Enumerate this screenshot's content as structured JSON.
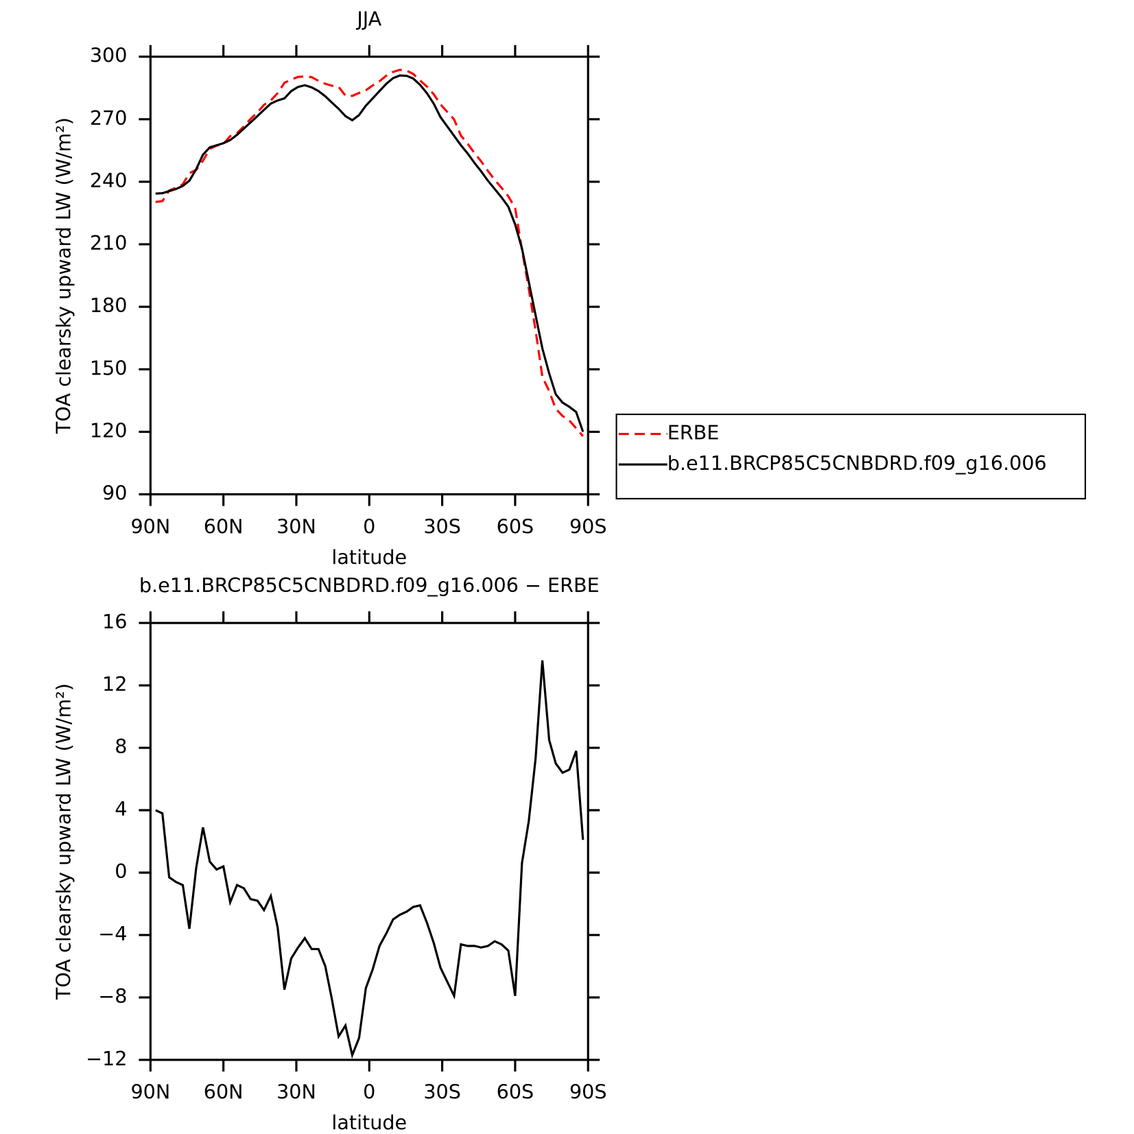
{
  "chart_data": [
    {
      "type": "line",
      "title": "JJA",
      "xlabel": "latitude",
      "ylabel": "TOA clearsky upward LW (W/m²)",
      "xlim": [
        90,
        -90
      ],
      "xticks": [
        {
          "value": 90,
          "label": "90N"
        },
        {
          "value": 60,
          "label": "60N"
        },
        {
          "value": 30,
          "label": "30N"
        },
        0,
        {
          "value": -30,
          "label": "30S"
        },
        {
          "value": -60,
          "label": "60S"
        },
        {
          "value": -90,
          "label": "90S"
        }
      ],
      "ylim": [
        90,
        300
      ],
      "yticks": [
        90,
        120,
        150,
        180,
        210,
        240,
        270,
        300
      ],
      "legend": "right",
      "x": [
        87.9,
        85.1,
        82.3,
        79.5,
        76.7,
        74.0,
        71.2,
        68.4,
        65.6,
        62.8,
        60.0,
        57.2,
        54.4,
        51.6,
        48.8,
        46.0,
        43.3,
        40.5,
        37.7,
        34.9,
        32.1,
        29.3,
        26.5,
        23.7,
        20.9,
        18.1,
        15.4,
        12.6,
        9.8,
        7.0,
        4.2,
        1.4,
        -1.4,
        -4.2,
        -7.0,
        -9.8,
        -12.6,
        -15.4,
        -18.1,
        -20.9,
        -23.7,
        -26.5,
        -29.3,
        -32.1,
        -34.9,
        -37.7,
        -40.5,
        -43.3,
        -46.0,
        -48.8,
        -51.6,
        -54.4,
        -57.2,
        -60.0,
        -62.8,
        -65.6,
        -68.4,
        -71.2,
        -74.0,
        -76.7,
        -79.5,
        -82.3,
        -85.1,
        -87.9
      ],
      "series": [
        {
          "name": "ERBE",
          "color": "#ff0000",
          "style": "dashed",
          "values": [
            230.3,
            230.7,
            235.8,
            237.1,
            238.8,
            244.1,
            245.7,
            250.1,
            255.8,
            257.3,
            258.1,
            261.9,
            263.3,
            266.5,
            270.2,
            273.3,
            276.9,
            279.0,
            282.5,
            287.5,
            289.0,
            290.3,
            290.5,
            290.2,
            288.4,
            287.0,
            286.1,
            285.5,
            281.3,
            281.2,
            282.6,
            283.9,
            286.2,
            288.2,
            290.9,
            292.7,
            293.7,
            293.3,
            291.7,
            288.6,
            285.7,
            282.0,
            277.1,
            273.5,
            269.9,
            262.1,
            258.2,
            253.7,
            249.8,
            245.2,
            240.9,
            237.1,
            233.0,
            227.4,
            207.4,
            188.7,
            168.7,
            146.4,
            139.5,
            131.0,
            127.6,
            125.4,
            121.7,
            117.9
          ]
        },
        {
          "name": "b.e11.BRCP85C5CNBDRD.f09_g16.006",
          "color": "#000000",
          "style": "solid",
          "values": [
            234.3,
            234.5,
            235.5,
            236.5,
            238.0,
            240.5,
            246.0,
            253.0,
            256.5,
            257.5,
            258.5,
            260.0,
            262.5,
            265.5,
            268.5,
            271.5,
            274.5,
            277.5,
            279.0,
            280.0,
            283.5,
            285.5,
            286.3,
            285.3,
            283.5,
            281.0,
            278.0,
            275.0,
            271.5,
            269.5,
            272.0,
            276.5,
            280.0,
            283.5,
            287.0,
            289.7,
            291.0,
            290.8,
            289.5,
            286.5,
            282.5,
            277.5,
            271.0,
            266.5,
            262.0,
            257.5,
            253.5,
            249.0,
            245.0,
            240.5,
            236.5,
            232.5,
            228.0,
            219.5,
            208.0,
            192.0,
            176.0,
            160.0,
            148.0,
            138.0,
            134.0,
            132.0,
            129.5,
            120.0
          ]
        }
      ]
    },
    {
      "type": "line",
      "title": "b.e11.BRCP85C5CNBDRD.f09_g16.006 − ERBE",
      "xlabel": "latitude",
      "ylabel": "TOA clearsky upward LW (W/m²)",
      "xlim": [
        90,
        -90
      ],
      "xticks": [
        {
          "value": 90,
          "label": "90N"
        },
        {
          "value": 60,
          "label": "60N"
        },
        {
          "value": 30,
          "label": "30N"
        },
        0,
        {
          "value": -30,
          "label": "30S"
        },
        {
          "value": -60,
          "label": "60S"
        },
        {
          "value": -90,
          "label": "90S"
        }
      ],
      "ylim": [
        -12,
        16
      ],
      "yticks": [
        {
          "value": -12,
          "label": "−12"
        },
        {
          "value": -8,
          "label": "−8"
        },
        {
          "value": -4,
          "label": "−4"
        },
        0,
        4,
        8,
        12,
        16
      ],
      "x": [
        87.9,
        85.1,
        82.3,
        79.5,
        76.7,
        74.0,
        71.2,
        68.4,
        65.6,
        62.8,
        60.0,
        57.2,
        54.4,
        51.6,
        48.8,
        46.0,
        43.3,
        40.5,
        37.7,
        34.9,
        32.1,
        29.3,
        26.5,
        23.7,
        20.9,
        18.1,
        15.4,
        12.6,
        9.8,
        7.0,
        4.2,
        1.4,
        -1.4,
        -4.2,
        -7.0,
        -9.8,
        -12.6,
        -15.4,
        -18.1,
        -20.9,
        -23.7,
        -26.5,
        -29.3,
        -32.1,
        -34.9,
        -37.7,
        -40.5,
        -43.3,
        -46.0,
        -48.8,
        -51.6,
        -54.4,
        -57.2,
        -60.0,
        -62.8,
        -65.6,
        -68.4,
        -71.2,
        -74.0,
        -76.7,
        -79.5,
        -82.3,
        -85.1,
        -87.9
      ],
      "color": "#000000",
      "values": [
        4.0,
        3.8,
        -0.3,
        -0.6,
        -0.8,
        -3.6,
        0.3,
        2.9,
        0.7,
        0.2,
        0.4,
        -1.9,
        -0.8,
        -1.0,
        -1.7,
        -1.8,
        -2.4,
        -1.5,
        -3.5,
        -7.5,
        -5.5,
        -4.8,
        -4.2,
        -4.9,
        -4.9,
        -6.0,
        -8.1,
        -10.5,
        -9.8,
        -11.7,
        -10.6,
        -7.4,
        -6.2,
        -4.7,
        -3.9,
        -3.0,
        -2.7,
        -2.5,
        -2.2,
        -2.1,
        -3.2,
        -4.5,
        -6.1,
        -7.0,
        -7.9,
        -4.6,
        -4.7,
        -4.7,
        -4.8,
        -4.7,
        -4.4,
        -4.6,
        -5.0,
        -7.9,
        0.6,
        3.3,
        7.3,
        13.6,
        8.5,
        7.0,
        6.4,
        6.6,
        7.8,
        2.1
      ]
    }
  ]
}
